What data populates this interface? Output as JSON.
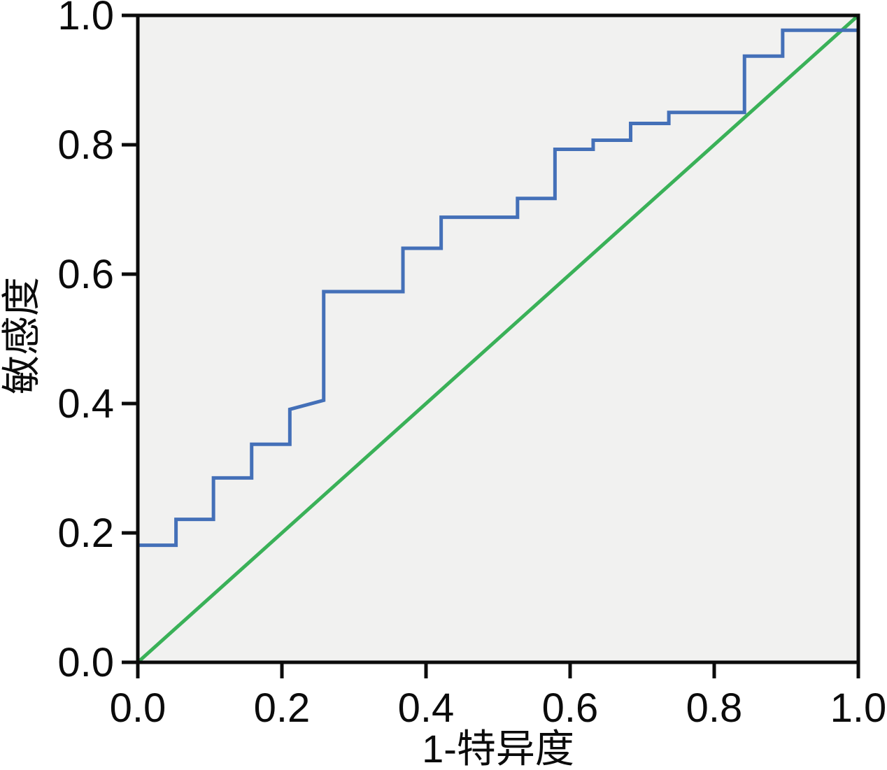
{
  "chart_data": {
    "type": "line",
    "chart_kind": "roc_curve",
    "title": "",
    "xlabel": "1-特异度",
    "ylabel": "敏感度",
    "xlim": [
      0.0,
      1.0
    ],
    "ylim": [
      0.0,
      1.0
    ],
    "x_tick_values": [
      0.0,
      0.2,
      0.4,
      0.6,
      0.8,
      1.0
    ],
    "x_tick_labels": [
      "0.0",
      "0.2",
      "0.4",
      "0.6",
      "0.8",
      "1.0"
    ],
    "y_tick_values": [
      0.0,
      0.2,
      0.4,
      0.6,
      0.8,
      1.0
    ],
    "y_tick_labels": [
      "0.0",
      "0.2",
      "0.4",
      "0.6",
      "0.8",
      "1.0"
    ],
    "grid": false,
    "legend": false,
    "colors": {
      "curve": "#4470b8",
      "reference": "#3ab158",
      "plot_background": "#f1f1f0",
      "axis": "#0b0b0b",
      "page_background": "#ffffff"
    },
    "series": [
      {
        "name": "ROC curve",
        "points": [
          [
            0.0,
            0.181
          ],
          [
            0.053,
            0.181
          ],
          [
            0.053,
            0.221
          ],
          [
            0.105,
            0.221
          ],
          [
            0.105,
            0.285
          ],
          [
            0.158,
            0.285
          ],
          [
            0.158,
            0.337
          ],
          [
            0.211,
            0.337
          ],
          [
            0.211,
            0.391
          ],
          [
            0.258,
            0.405
          ],
          [
            0.258,
            0.573
          ],
          [
            0.368,
            0.573
          ],
          [
            0.368,
            0.64
          ],
          [
            0.421,
            0.64
          ],
          [
            0.421,
            0.688
          ],
          [
            0.527,
            0.688
          ],
          [
            0.527,
            0.717
          ],
          [
            0.579,
            0.717
          ],
          [
            0.579,
            0.793
          ],
          [
            0.632,
            0.793
          ],
          [
            0.632,
            0.807
          ],
          [
            0.684,
            0.807
          ],
          [
            0.684,
            0.833
          ],
          [
            0.737,
            0.833
          ],
          [
            0.737,
            0.85
          ],
          [
            0.842,
            0.85
          ],
          [
            0.842,
            0.937
          ],
          [
            0.895,
            0.937
          ],
          [
            0.895,
            0.977
          ],
          [
            1.0,
            0.977
          ]
        ]
      },
      {
        "name": "reference diagonal",
        "points": [
          [
            0.0,
            0.0
          ],
          [
            1.0,
            1.0
          ]
        ]
      }
    ]
  }
}
